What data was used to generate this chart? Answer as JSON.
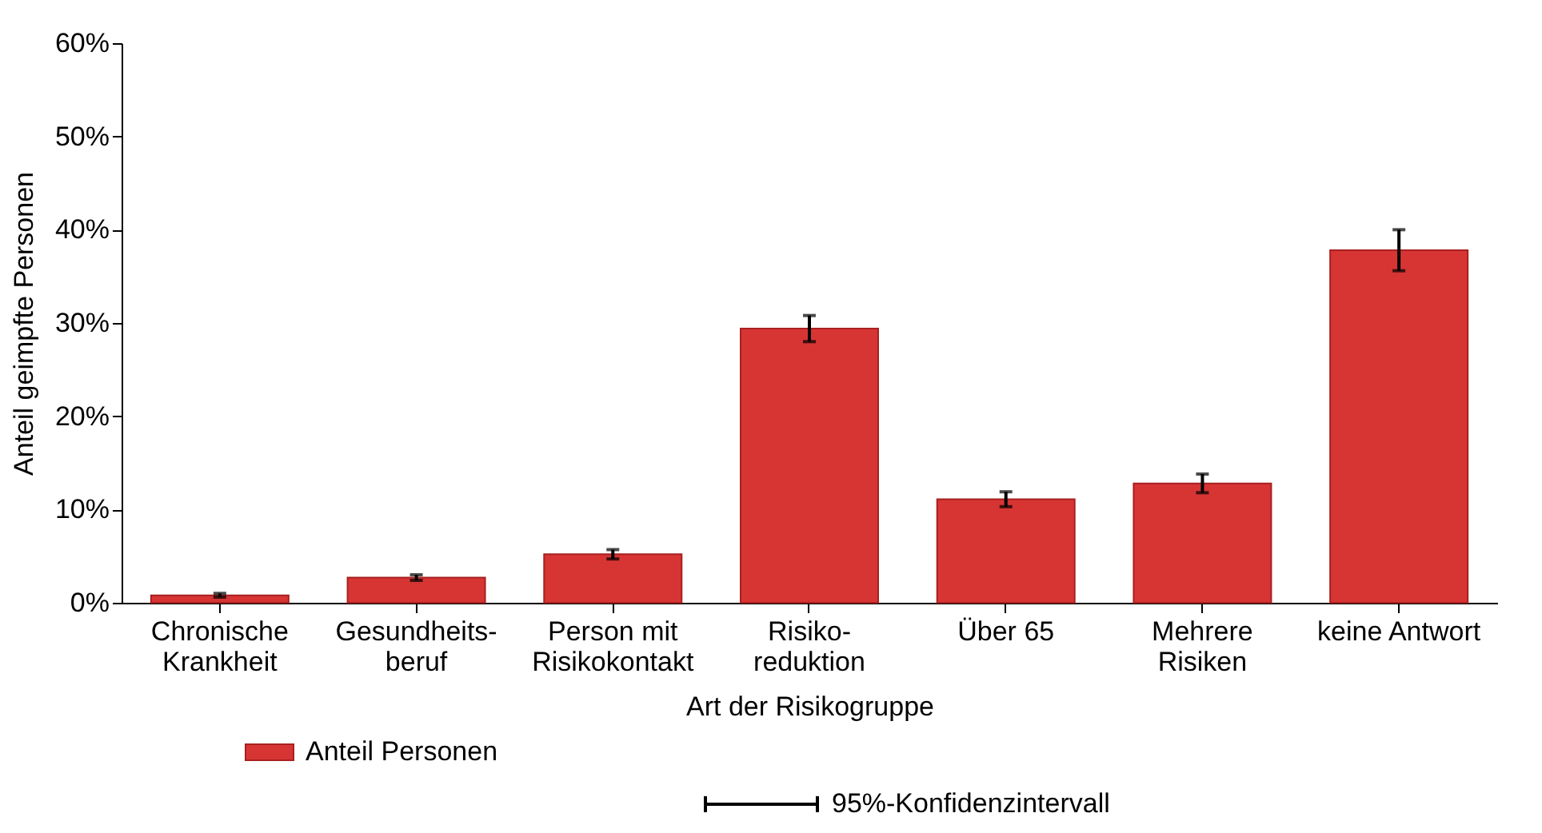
{
  "chart_data": {
    "type": "bar",
    "xlabel": "Art der Risikogruppe",
    "ylabel": "Anteil geimpfte Personen",
    "categories": [
      "Chronische\nKrankheit",
      "Gesundheits-\nberuf",
      "Person mit\nRisikokontakt",
      "Risiko-\nreduktion",
      "Über 65",
      "Mehrere\nRisiken",
      "keine Antwort"
    ],
    "series": [
      {
        "name": "Anteil Personen",
        "color": "#d73534",
        "values": [
          0.8,
          2.7,
          5.2,
          29.4,
          11.1,
          12.8,
          37.8
        ],
        "errors": [
          [
            0.6,
            1.0
          ],
          [
            2.4,
            3.0
          ],
          [
            4.7,
            5.7
          ],
          [
            28.0,
            30.8
          ],
          [
            10.3,
            11.9
          ],
          [
            11.8,
            13.8
          ],
          [
            35.6,
            40.0
          ]
        ]
      }
    ],
    "annotations": [
      "95%-Konfidenzintervall"
    ],
    "ylim": [
      0,
      60
    ],
    "yticks": [
      {
        "value": 0,
        "label": "0%"
      },
      {
        "value": 10,
        "label": "10%"
      },
      {
        "value": 20,
        "label": "20%"
      },
      {
        "value": 30,
        "label": "30%"
      },
      {
        "value": 40,
        "label": "40%"
      },
      {
        "value": 50,
        "label": "50%"
      },
      {
        "value": 60,
        "label": "60%"
      }
    ],
    "grid": false,
    "legend": "bottom"
  }
}
